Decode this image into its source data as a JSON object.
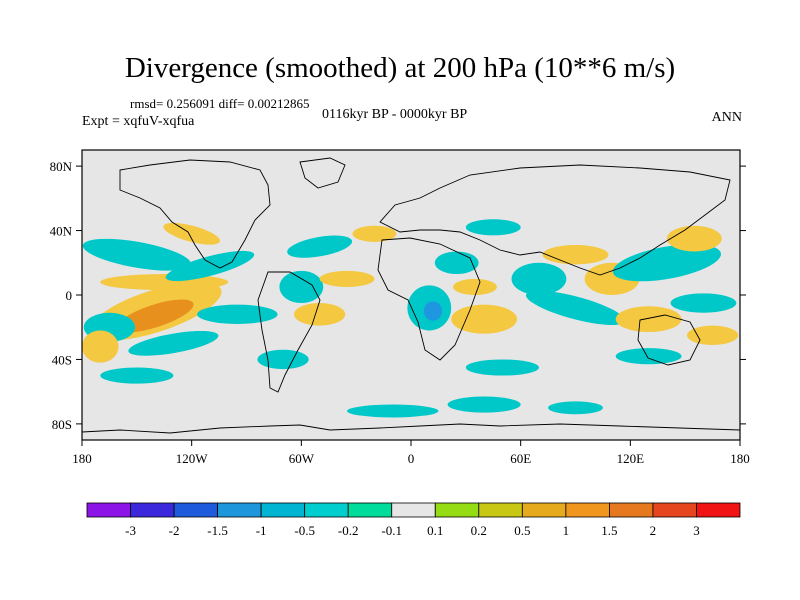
{
  "title": "Divergence (smoothed) at 200 hPa (10**6 m/s)",
  "stats": "rmsd= 0.256091 diff= 0.00212865",
  "period": "0116kyr BP - 0000kyr BP",
  "experiment": "Expt = xqfuV-xqfua",
  "season": "ANN",
  "map": {
    "lon_range": [
      -180,
      180
    ],
    "lat_range": [
      -90,
      90
    ],
    "background_color": "#e6e6e6",
    "lat_ticks": [
      {
        "lat": 80,
        "label": "80N"
      },
      {
        "lat": 40,
        "label": "40N"
      },
      {
        "lat": 0,
        "label": "0"
      },
      {
        "lat": -40,
        "label": "40S"
      },
      {
        "lat": -80,
        "label": "80S"
      }
    ],
    "lon_ticks": [
      {
        "lon": -180,
        "label": "180"
      },
      {
        "lon": -120,
        "label": "120W"
      },
      {
        "lon": -60,
        "label": "60W"
      },
      {
        "lon": 0,
        "label": "0"
      },
      {
        "lon": 60,
        "label": "60E"
      },
      {
        "lon": 120,
        "label": "120E"
      },
      {
        "lon": 180,
        "label": "180"
      }
    ],
    "regions": [
      {
        "lon": -140,
        "lat": -10,
        "rx": 38,
        "ry": 13,
        "rot": -18,
        "color": "#f4c840"
      },
      {
        "lon": -140,
        "lat": -13,
        "rx": 22,
        "ry": 7,
        "rot": -18,
        "color": "#e8901e"
      },
      {
        "lon": -165,
        "lat": -20,
        "rx": 14,
        "ry": 9,
        "rot": 0,
        "color": "#00c8c8"
      },
      {
        "lon": -150,
        "lat": 25,
        "rx": 30,
        "ry": 8,
        "rot": 10,
        "color": "#00c8c8"
      },
      {
        "lon": -135,
        "lat": 8,
        "rx": 35,
        "ry": 5,
        "rot": 0,
        "color": "#f4c840"
      },
      {
        "lon": -110,
        "lat": 18,
        "rx": 25,
        "ry": 6,
        "rot": -15,
        "color": "#00c8c8"
      },
      {
        "lon": -130,
        "lat": -30,
        "rx": 25,
        "ry": 6,
        "rot": -10,
        "color": "#00c8c8"
      },
      {
        "lon": -170,
        "lat": -32,
        "rx": 10,
        "ry": 10,
        "rot": 0,
        "color": "#f4c840"
      },
      {
        "lon": -95,
        "lat": -12,
        "rx": 22,
        "ry": 6,
        "rot": 0,
        "color": "#00c8c8"
      },
      {
        "lon": -120,
        "lat": 38,
        "rx": 16,
        "ry": 5,
        "rot": 15,
        "color": "#f4c840"
      },
      {
        "lon": -60,
        "lat": 5,
        "rx": 12,
        "ry": 10,
        "rot": 0,
        "color": "#00c8c8"
      },
      {
        "lon": -50,
        "lat": -12,
        "rx": 14,
        "ry": 7,
        "rot": 0,
        "color": "#f4c840"
      },
      {
        "lon": -70,
        "lat": -40,
        "rx": 14,
        "ry": 6,
        "rot": 0,
        "color": "#00c8c8"
      },
      {
        "lon": -35,
        "lat": 10,
        "rx": 15,
        "ry": 5,
        "rot": 0,
        "color": "#f4c840"
      },
      {
        "lon": -50,
        "lat": 30,
        "rx": 18,
        "ry": 6,
        "rot": -10,
        "color": "#00c8c8"
      },
      {
        "lon": -20,
        "lat": 38,
        "rx": 12,
        "ry": 5,
        "rot": 0,
        "color": "#f4c840"
      },
      {
        "lon": 10,
        "lat": -8,
        "rx": 12,
        "ry": 14,
        "rot": 0,
        "color": "#00c8c8"
      },
      {
        "lon": 12,
        "lat": -10,
        "rx": 5,
        "ry": 6,
        "rot": 0,
        "color": "#1f96e0"
      },
      {
        "lon": 25,
        "lat": 20,
        "rx": 12,
        "ry": 7,
        "rot": 0,
        "color": "#00c8c8"
      },
      {
        "lon": 40,
        "lat": -15,
        "rx": 18,
        "ry": 9,
        "rot": 0,
        "color": "#f4c840"
      },
      {
        "lon": 35,
        "lat": 5,
        "rx": 12,
        "ry": 5,
        "rot": 0,
        "color": "#f4c840"
      },
      {
        "lon": 45,
        "lat": 42,
        "rx": 15,
        "ry": 5,
        "rot": 0,
        "color": "#00c8c8"
      },
      {
        "lon": 70,
        "lat": 10,
        "rx": 15,
        "ry": 10,
        "rot": 0,
        "color": "#00c8c8"
      },
      {
        "lon": 90,
        "lat": -8,
        "rx": 28,
        "ry": 7,
        "rot": 15,
        "color": "#00c8c8"
      },
      {
        "lon": 90,
        "lat": 25,
        "rx": 18,
        "ry": 6,
        "rot": 0,
        "color": "#f4c840"
      },
      {
        "lon": 110,
        "lat": 10,
        "rx": 15,
        "ry": 10,
        "rot": 0,
        "color": "#f4c840"
      },
      {
        "lon": 130,
        "lat": -15,
        "rx": 18,
        "ry": 8,
        "rot": 0,
        "color": "#f4c840"
      },
      {
        "lon": 140,
        "lat": 20,
        "rx": 30,
        "ry": 10,
        "rot": -10,
        "color": "#00c8c8"
      },
      {
        "lon": 155,
        "lat": 35,
        "rx": 15,
        "ry": 8,
        "rot": 0,
        "color": "#f4c840"
      },
      {
        "lon": 160,
        "lat": -5,
        "rx": 18,
        "ry": 6,
        "rot": 0,
        "color": "#00c8c8"
      },
      {
        "lon": 165,
        "lat": -25,
        "rx": 14,
        "ry": 6,
        "rot": 0,
        "color": "#f4c840"
      },
      {
        "lon": 50,
        "lat": -45,
        "rx": 20,
        "ry": 5,
        "rot": 0,
        "color": "#00c8c8"
      },
      {
        "lon": 130,
        "lat": -38,
        "rx": 18,
        "ry": 5,
        "rot": 0,
        "color": "#00c8c8"
      },
      {
        "lon": -10,
        "lat": -72,
        "rx": 25,
        "ry": 4,
        "rot": 0,
        "color": "#00c8c8"
      },
      {
        "lon": 40,
        "lat": -68,
        "rx": 20,
        "ry": 5,
        "rot": 0,
        "color": "#00c8c8"
      },
      {
        "lon": 90,
        "lat": -70,
        "rx": 15,
        "ry": 4,
        "rot": 0,
        "color": "#00c8c8"
      },
      {
        "lon": -150,
        "lat": -50,
        "rx": 20,
        "ry": 5,
        "rot": 0,
        "color": "#00c8c8"
      }
    ]
  },
  "colorbar": {
    "colors": [
      "#8c14e6",
      "#3c28dc",
      "#1e5adc",
      "#1e96dc",
      "#00b4d2",
      "#00cdcd",
      "#00dc9b",
      "#e6e6e6",
      "#96dc14",
      "#c8c814",
      "#e6aa1e",
      "#f0961e",
      "#e6781e",
      "#e6461e",
      "#f01414"
    ],
    "labels": [
      "-3",
      "-2",
      "-1.5",
      "-1",
      "-0.5",
      "-0.2",
      "-0.1",
      "0.1",
      "0.2",
      "0.5",
      "1",
      "1.5",
      "2",
      "3"
    ]
  }
}
